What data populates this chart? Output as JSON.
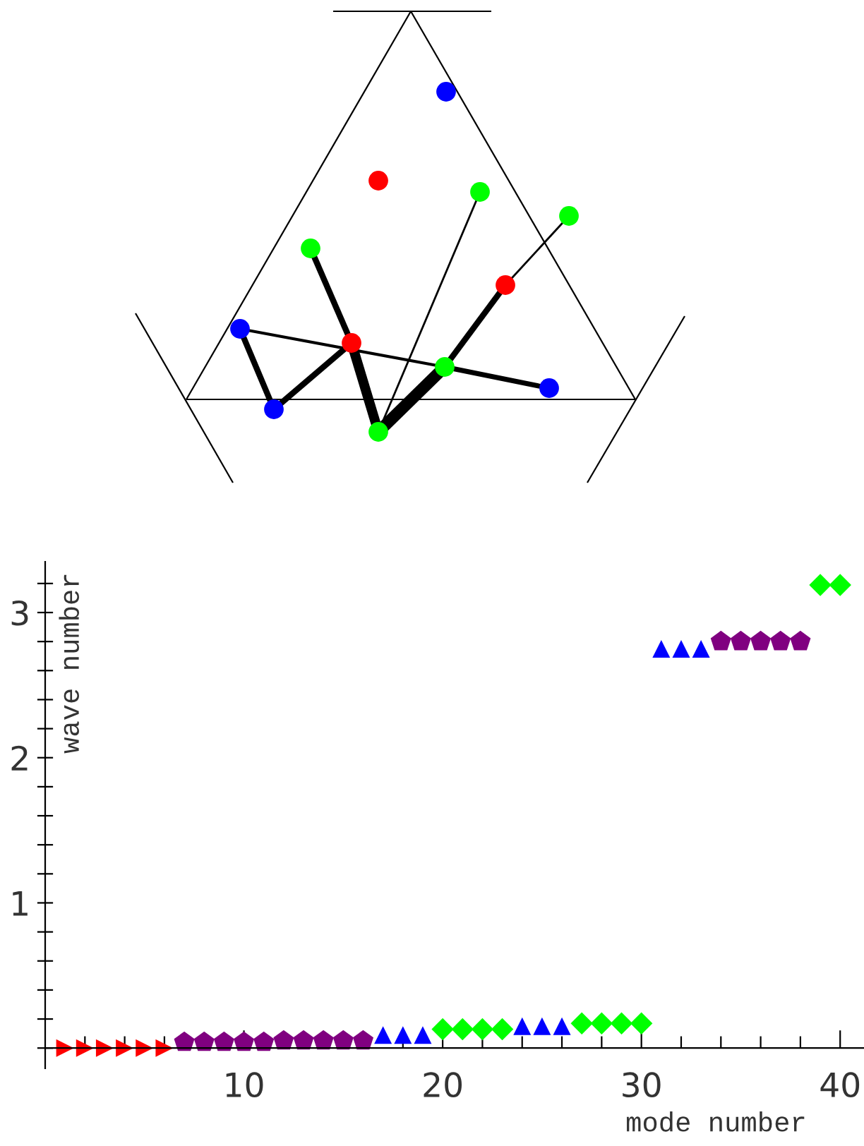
{
  "chart_data": {
    "type": "scatter",
    "xlabel": "mode number",
    "ylabel": "wave number",
    "xlim": [
      0,
      41.2
    ],
    "ylim": [
      -0.14,
      3.35
    ],
    "xticks": [
      {
        "value": 2,
        "label": null
      },
      {
        "value": 4,
        "label": null
      },
      {
        "value": 6,
        "label": null
      },
      {
        "value": 8,
        "label": null
      },
      10,
      {
        "value": 12,
        "label": null
      },
      {
        "value": 14,
        "label": null
      },
      {
        "value": 16,
        "label": null
      },
      {
        "value": 18,
        "label": null
      },
      20,
      {
        "value": 22,
        "label": null
      },
      {
        "value": 24,
        "label": null
      },
      {
        "value": 26,
        "label": null
      },
      {
        "value": 28,
        "label": null
      },
      30,
      {
        "value": 32,
        "label": null
      },
      {
        "value": 34,
        "label": null
      },
      {
        "value": 36,
        "label": null
      },
      {
        "value": 38,
        "label": null
      },
      40
    ],
    "yticks": [
      {
        "value": 0,
        "label": null
      },
      {
        "value": 0.2,
        "label": null
      },
      {
        "value": 0.4,
        "label": null
      },
      {
        "value": 0.6,
        "label": null
      },
      {
        "value": 0.8,
        "label": null
      },
      1,
      {
        "value": 1.2,
        "label": null
      },
      {
        "value": 1.4,
        "label": null
      },
      {
        "value": 1.6,
        "label": null
      },
      {
        "value": 1.8,
        "label": null
      },
      2,
      {
        "value": 2.2,
        "label": null
      },
      {
        "value": 2.4,
        "label": null
      },
      {
        "value": 2.6,
        "label": null
      },
      {
        "value": 2.8,
        "label": null
      },
      3,
      {
        "value": 3.2,
        "label": null
      }
    ],
    "grid": false,
    "series": [
      {
        "color": "#ff0000",
        "x": [
          1,
          2,
          3,
          4,
          5,
          6
        ],
        "values": [
          0,
          0,
          0,
          0,
          0,
          0
        ]
      },
      {
        "color": "#800080",
        "x": [
          7,
          8,
          9,
          10,
          11,
          12,
          13,
          14,
          15,
          16,
          34,
          35,
          36,
          37,
          38
        ],
        "values": [
          0.04,
          0.04,
          0.04,
          0.04,
          0.04,
          0.05,
          0.05,
          0.05,
          0.05,
          0.05,
          2.8,
          2.8,
          2.8,
          2.8,
          2.8
        ]
      },
      {
        "color": "#0000ff",
        "marker": "triangle",
        "x": [
          17,
          18,
          19,
          24,
          25,
          26,
          31,
          32,
          33
        ],
        "values": [
          0.09,
          0.09,
          0.09,
          0.15,
          0.15,
          0.15,
          2.75,
          2.75,
          2.75
        ]
      },
      {
        "color": "#00ff00",
        "marker": "diamond",
        "x": [
          20,
          21,
          22,
          23,
          27,
          28,
          29,
          30,
          39,
          40
        ],
        "values": [
          0.13,
          0.13,
          0.13,
          0.13,
          0.17,
          0.17,
          0.17,
          0.17,
          3.19,
          3.19
        ]
      }
    ]
  }
}
